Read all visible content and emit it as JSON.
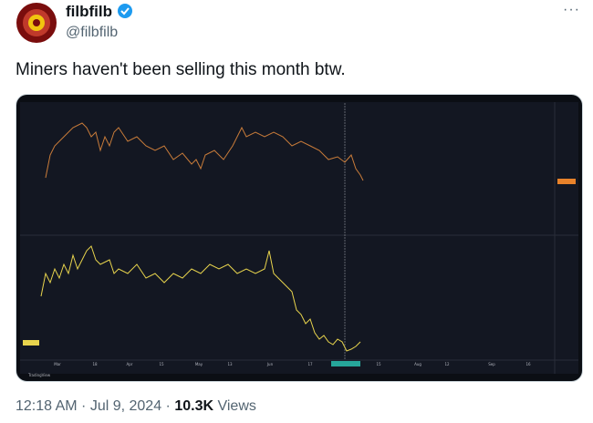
{
  "user": {
    "name": "filbfilb",
    "handle": "@filbfilb"
  },
  "tweet": {
    "text": "Miners haven't been selling this month btw."
  },
  "chart": {
    "x_labels": [
      "Mar",
      "18",
      "Apr",
      "15",
      "May",
      "13",
      "Jun",
      "17",
      "15",
      "Aug",
      "12",
      "Sep",
      "16"
    ],
    "brand": "TradingView"
  },
  "footer": {
    "time": "12:18 AM · Jul 9, 2024 · ",
    "views": "10.3K",
    "views_label": " Views"
  }
}
